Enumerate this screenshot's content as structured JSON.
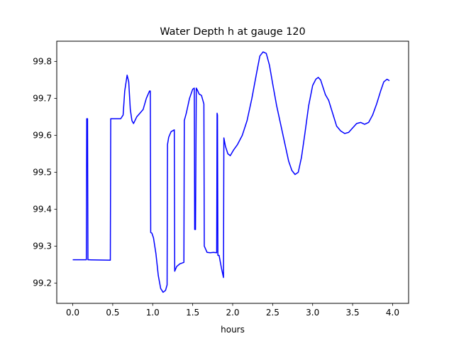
{
  "chart_data": {
    "type": "line",
    "title": "Water Depth h at gauge 120",
    "xlabel": "hours",
    "ylabel": "",
    "xlim": [
      -0.2,
      4.2
    ],
    "ylim": [
      99.145,
      99.855
    ],
    "xticks": [
      0.0,
      0.5,
      1.0,
      1.5,
      2.0,
      2.5,
      3.0,
      3.5,
      4.0
    ],
    "xtick_labels": [
      "0.0",
      "0.5",
      "1.0",
      "1.5",
      "2.0",
      "2.5",
      "3.0",
      "3.5",
      "4.0"
    ],
    "yticks": [
      99.2,
      99.3,
      99.4,
      99.5,
      99.6,
      99.7,
      99.8
    ],
    "ytick_labels": [
      "99.2",
      "99.3",
      "99.4",
      "99.5",
      "99.6",
      "99.7",
      "99.8"
    ],
    "grid": false,
    "series": [
      {
        "color": "#0000ff",
        "points": [
          [
            0.0,
            99.263
          ],
          [
            0.17,
            99.263
          ],
          [
            0.175,
            99.645
          ],
          [
            0.185,
            99.645
          ],
          [
            0.19,
            99.263
          ],
          [
            0.2,
            99.263
          ],
          [
            0.47,
            99.262
          ],
          [
            0.475,
            99.645
          ],
          [
            0.6,
            99.645
          ],
          [
            0.63,
            99.655
          ],
          [
            0.65,
            99.72
          ],
          [
            0.68,
            99.763
          ],
          [
            0.7,
            99.745
          ],
          [
            0.72,
            99.67
          ],
          [
            0.74,
            99.64
          ],
          [
            0.76,
            99.632
          ],
          [
            0.8,
            99.65
          ],
          [
            0.84,
            99.66
          ],
          [
            0.88,
            99.67
          ],
          [
            0.92,
            99.7
          ],
          [
            0.96,
            99.72
          ],
          [
            0.97,
            99.72
          ],
          [
            0.975,
            99.337
          ],
          [
            0.99,
            99.335
          ],
          [
            1.01,
            99.322
          ],
          [
            1.04,
            99.28
          ],
          [
            1.07,
            99.22
          ],
          [
            1.1,
            99.185
          ],
          [
            1.13,
            99.175
          ],
          [
            1.16,
            99.18
          ],
          [
            1.18,
            99.195
          ],
          [
            1.185,
            99.575
          ],
          [
            1.2,
            99.595
          ],
          [
            1.23,
            99.61
          ],
          [
            1.27,
            99.615
          ],
          [
            1.275,
            99.232
          ],
          [
            1.3,
            99.245
          ],
          [
            1.34,
            99.252
          ],
          [
            1.39,
            99.256
          ],
          [
            1.395,
            99.64
          ],
          [
            1.42,
            99.66
          ],
          [
            1.46,
            99.7
          ],
          [
            1.5,
            99.725
          ],
          [
            1.52,
            99.728
          ],
          [
            1.525,
            99.345
          ],
          [
            1.535,
            99.345
          ],
          [
            1.545,
            99.728
          ],
          [
            1.56,
            99.722
          ],
          [
            1.58,
            99.712
          ],
          [
            1.61,
            99.708
          ],
          [
            1.64,
            99.685
          ],
          [
            1.645,
            99.3
          ],
          [
            1.68,
            99.283
          ],
          [
            1.72,
            99.282
          ],
          [
            1.76,
            99.283
          ],
          [
            1.8,
            99.282
          ],
          [
            1.805,
            99.66
          ],
          [
            1.81,
            99.655
          ],
          [
            1.815,
            99.275
          ],
          [
            1.83,
            99.275
          ],
          [
            1.86,
            99.24
          ],
          [
            1.885,
            99.215
          ],
          [
            1.89,
            99.593
          ],
          [
            1.91,
            99.57
          ],
          [
            1.94,
            99.55
          ],
          [
            1.97,
            99.545
          ],
          [
            2.01,
            99.56
          ],
          [
            2.06,
            99.575
          ],
          [
            2.12,
            99.6
          ],
          [
            2.18,
            99.64
          ],
          [
            2.24,
            99.7
          ],
          [
            2.3,
            99.77
          ],
          [
            2.34,
            99.815
          ],
          [
            2.38,
            99.826
          ],
          [
            2.42,
            99.822
          ],
          [
            2.46,
            99.79
          ],
          [
            2.5,
            99.74
          ],
          [
            2.55,
            99.68
          ],
          [
            2.6,
            99.63
          ],
          [
            2.65,
            99.58
          ],
          [
            2.7,
            99.53
          ],
          [
            2.74,
            99.505
          ],
          [
            2.78,
            99.494
          ],
          [
            2.82,
            99.5
          ],
          [
            2.86,
            99.54
          ],
          [
            2.9,
            99.6
          ],
          [
            2.95,
            99.68
          ],
          [
            3.0,
            99.735
          ],
          [
            3.04,
            99.752
          ],
          [
            3.07,
            99.757
          ],
          [
            3.1,
            99.75
          ],
          [
            3.13,
            99.73
          ],
          [
            3.16,
            99.71
          ],
          [
            3.2,
            99.695
          ],
          [
            3.25,
            99.66
          ],
          [
            3.3,
            99.625
          ],
          [
            3.35,
            99.612
          ],
          [
            3.4,
            99.605
          ],
          [
            3.45,
            99.608
          ],
          [
            3.5,
            99.62
          ],
          [
            3.55,
            99.632
          ],
          [
            3.6,
            99.635
          ],
          [
            3.65,
            99.63
          ],
          [
            3.7,
            99.635
          ],
          [
            3.75,
            99.655
          ],
          [
            3.8,
            99.685
          ],
          [
            3.85,
            99.72
          ],
          [
            3.89,
            99.745
          ],
          [
            3.93,
            99.752
          ],
          [
            3.96,
            99.748
          ]
        ]
      }
    ]
  }
}
